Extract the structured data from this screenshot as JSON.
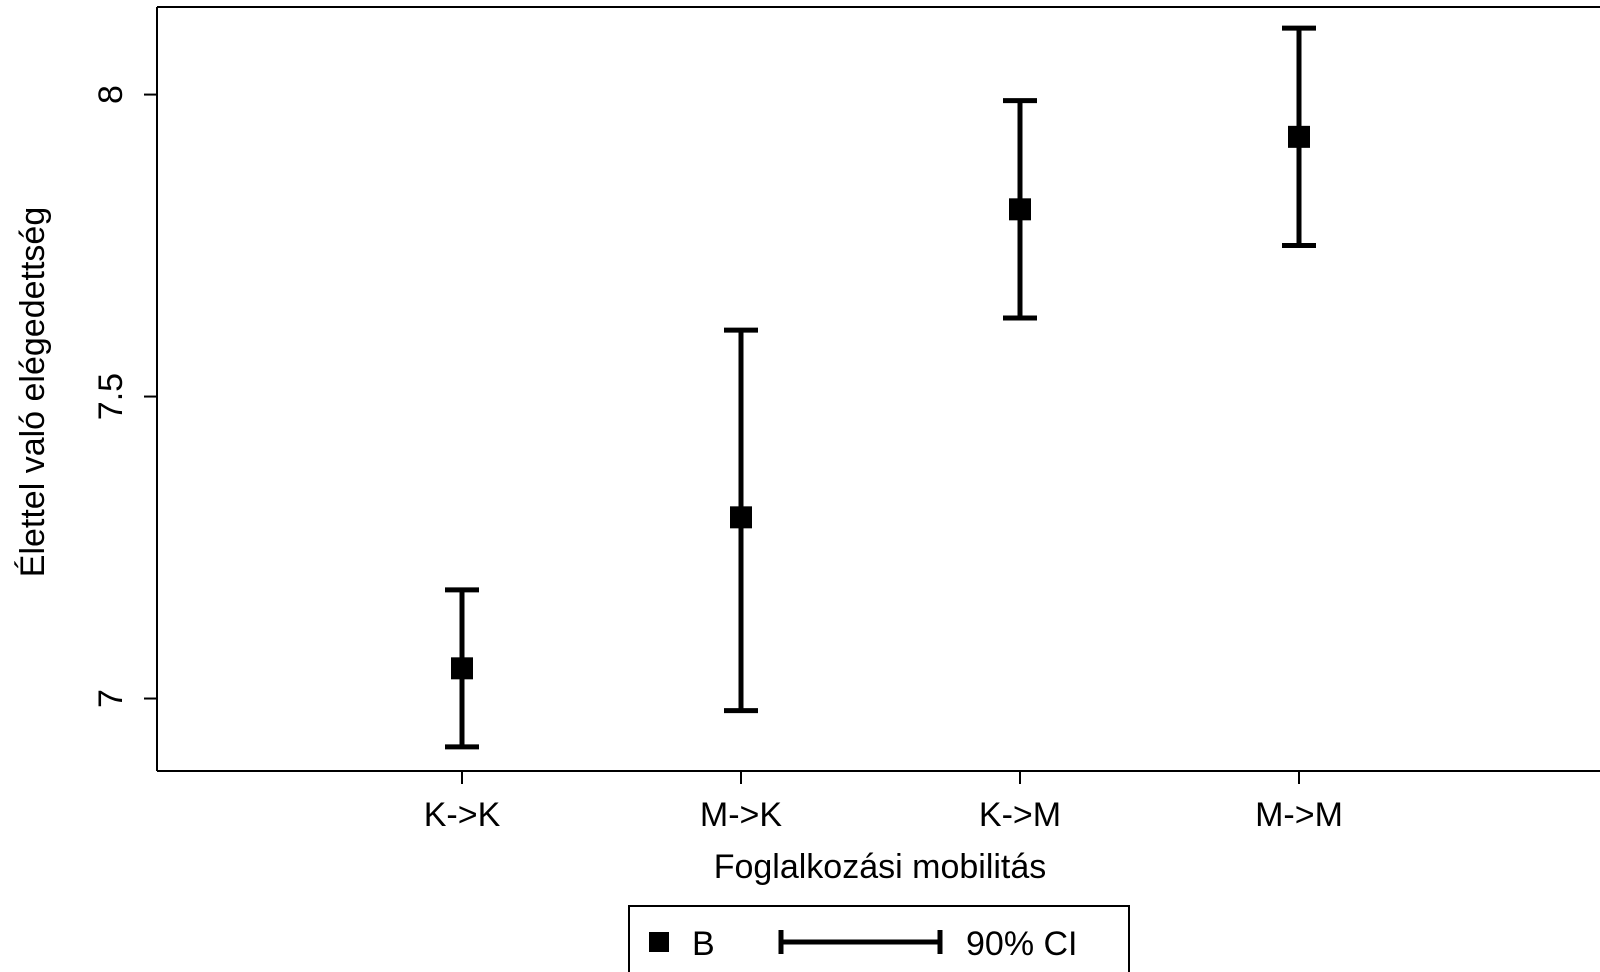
{
  "chart_data": {
    "type": "scatter",
    "subtype": "point-with-error-bars",
    "title": "",
    "xlabel": "Foglalkozási mobilitás",
    "ylabel": "Élettel való elégedettség",
    "categories": [
      "K->K",
      "M->K",
      "K->M",
      "M->M"
    ],
    "series": [
      {
        "name": "B",
        "marker": "square",
        "values": [
          7.05,
          7.3,
          7.81,
          7.93
        ],
        "ci_lower": [
          6.92,
          6.98,
          7.63,
          7.75
        ],
        "ci_upper": [
          7.18,
          7.61,
          7.99,
          8.11
        ]
      }
    ],
    "ylim": [
      6.88,
      8.145
    ],
    "yticks": [
      7,
      7.5,
      8
    ],
    "ytick_labels": [
      "7",
      "7.5",
      "8"
    ],
    "grid": false,
    "legend": {
      "placement": "bottom-center",
      "entries": [
        {
          "label": "B",
          "symbol": "square-marker"
        },
        {
          "label": "90% CI",
          "symbol": "capped-range-bar"
        }
      ]
    },
    "colors": {
      "marker": "#000000",
      "line": "#000000"
    }
  }
}
